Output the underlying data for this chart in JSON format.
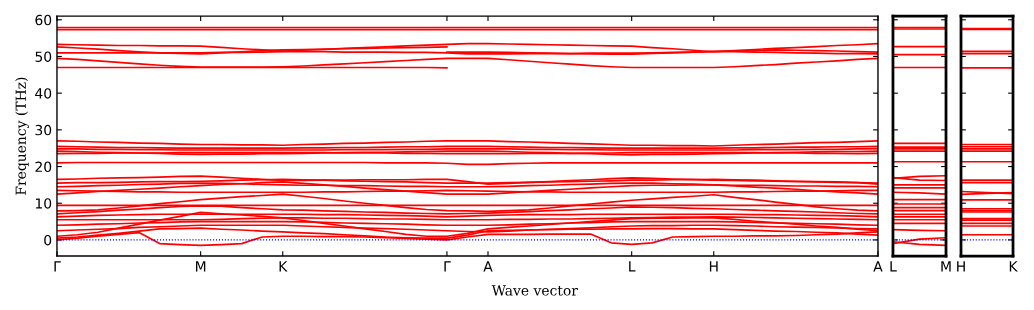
{
  "chart_data": [
    {
      "type": "line",
      "ylabel": "Frequency (THz)",
      "xlabel": "Wave vector",
      "categories": [
        "Γ",
        null,
        null,
        null,
        null,
        null,
        null,
        "M",
        null,
        null,
        null,
        "K",
        null,
        null,
        null,
        null,
        null,
        null,
        null,
        "Γ",
        null,
        "A",
        null,
        null,
        null,
        null,
        null,
        null,
        "L",
        null,
        null,
        null,
        "H",
        null,
        null,
        null,
        null,
        null,
        null,
        null,
        "A"
      ],
      "ylim": [
        -4.4,
        61
      ],
      "yticks": [
        0,
        10,
        20,
        30,
        40,
        50,
        60
      ],
      "line_style": "solid",
      "ref_lines": [
        {
          "axis": "y",
          "value": 0,
          "color": "#0000ff",
          "line_style": "dotted"
        }
      ],
      "series": [
        {
          "color": "#ff0000",
          "values": [
            0,
            0.5,
            1.0,
            1.5,
            2.0,
            -1.0,
            -1.3,
            -1.5,
            -1.3,
            -1.0,
            0.8,
            1.0,
            1.0,
            0.9,
            0.9,
            0.8,
            0.6,
            0.4,
            0.2,
            0,
            0.8,
            1.5,
            1.5,
            1.5,
            1.6,
            1.6,
            1.6,
            -0.8,
            -1.2,
            -0.8,
            0.8,
            0.9,
            1.0,
            1.0,
            1.1,
            1.1,
            1.2,
            1.4,
            1.6,
            1.9,
            2.2
          ]
        },
        {
          "color": "#ff0000",
          "values": [
            0.5,
            0.8,
            1.3,
            1.8,
            2.4,
            3.0,
            3.1,
            3.2,
            2.9,
            2.7,
            2.4,
            2.2,
            1.9,
            1.7,
            1.4,
            1.1,
            0.8,
            0.6,
            0.5,
            0.5,
            1.3,
            2.5,
            2.6,
            2.7,
            2.8,
            2.9,
            2.9,
            3.0,
            3.0,
            3.1,
            3.1,
            3.0,
            3.0,
            2.8,
            2.6,
            2.4,
            2.3,
            2.1,
            1.9,
            1.6,
            1.3
          ]
        },
        {
          "color": "#ff0000",
          "values": [
            1.0,
            1.4,
            2.1,
            3.2,
            4.3,
            5.4,
            6.4,
            7.5,
            7.1,
            6.8,
            6.4,
            6.0,
            5.3,
            4.5,
            3.8,
            3.0,
            2.3,
            1.5,
            1.0,
            1.0,
            1.8,
            3.0,
            3.4,
            3.8,
            4.2,
            4.6,
            5.0,
            5.4,
            5.8,
            5.9,
            5.9,
            6.0,
            6.0,
            5.6,
            5.1,
            4.7,
            4.3,
            3.8,
            3.4,
            2.9,
            2.5
          ]
        },
        {
          "color": "#ff0000",
          "values": [
            2.5,
            2.7,
            2.9,
            3.1,
            3.4,
            3.6,
            3.8,
            4.0,
            4.0,
            4.0,
            4.0,
            4.0,
            3.8,
            3.6,
            3.4,
            3.2,
            3.1,
            2.9,
            2.7,
            2.5,
            2.3,
            2.2,
            2.4,
            2.7,
            2.9,
            3.1,
            3.3,
            3.6,
            3.8,
            3.9,
            3.9,
            4.0,
            4.0,
            3.9,
            3.8,
            3.6,
            3.5,
            3.4,
            3.3,
            3.1,
            3.0
          ]
        },
        {
          "color": "#ff0000",
          "values": [
            4.0,
            4.1,
            4.3,
            4.4,
            4.6,
            4.7,
            4.9,
            5.0,
            5.0,
            5.0,
            5.0,
            5.0,
            4.9,
            4.8,
            4.6,
            4.5,
            4.4,
            4.3,
            4.1,
            4.0,
            4.0,
            4.0,
            4.1,
            4.3,
            4.4,
            4.6,
            4.7,
            4.9,
            5.0,
            5.0,
            5.0,
            5.0,
            5.0,
            4.9,
            4.8,
            4.6,
            4.5,
            4.4,
            4.3,
            4.1,
            4.0
          ]
        },
        {
          "color": "#ff0000",
          "values": [
            5.5,
            5.5,
            5.5,
            5.5,
            5.5,
            5.5,
            5.5,
            5.5,
            5.6,
            5.8,
            5.9,
            6.0,
            6.0,
            5.9,
            5.9,
            5.8,
            5.7,
            5.7,
            5.6,
            5.5,
            5.5,
            5.5,
            5.6,
            5.6,
            5.7,
            5.7,
            5.8,
            5.9,
            6.0,
            6.1,
            6.2,
            6.2,
            6.3,
            6.2,
            6.1,
            6.0,
            5.9,
            5.8,
            5.7,
            5.6,
            5.5
          ]
        },
        {
          "color": "#ff0000",
          "values": [
            6.3,
            6.5,
            6.7,
            6.8,
            6.9,
            7.0,
            7.0,
            7.0,
            7.0,
            7.0,
            7.0,
            7.0,
            7.0,
            6.9,
            6.9,
            6.8,
            6.7,
            6.6,
            6.5,
            6.3,
            6.5,
            6.7,
            6.8,
            6.9,
            6.9,
            6.9,
            7.0,
            7.0,
            7.0,
            7.0,
            7.0,
            7.0,
            7.0,
            7.0,
            6.9,
            6.9,
            6.8,
            6.7,
            6.6,
            6.5,
            6.3
          ]
        },
        {
          "color": "#ff0000",
          "values": [
            7.1,
            7.4,
            7.7,
            8.1,
            8.4,
            8.8,
            9.1,
            9.3,
            9.2,
            8.8,
            8.5,
            8.2,
            8.1,
            7.9,
            7.8,
            7.6,
            7.5,
            7.3,
            7.2,
            7.1,
            7.2,
            7.3,
            7.5,
            7.7,
            8.0,
            8.2,
            8.5,
            8.7,
            9.0,
            8.9,
            8.8,
            8.6,
            8.5,
            8.3,
            8.1,
            7.9,
            7.8,
            7.6,
            7.4,
            7.2,
            7.1
          ]
        },
        {
          "color": "#ff0000",
          "values": [
            9.4,
            9.4,
            9.4,
            9.4,
            9.4,
            9.4,
            9.4,
            9.4,
            9.4,
            9.4,
            9.4,
            9.4,
            9.4,
            9.4,
            9.4,
            9.4,
            9.4,
            9.4,
            9.4,
            9.4,
            9.4,
            9.4,
            9.4,
            9.4,
            9.4,
            9.4,
            9.4,
            9.4,
            9.4,
            9.4,
            9.4,
            9.4,
            9.4,
            9.4,
            9.4,
            9.4,
            9.4,
            9.4,
            9.4,
            9.4,
            9.4
          ]
        },
        {
          "color": "#ff0000",
          "values": [
            7.9,
            8.0,
            8.2,
            8.7,
            9.3,
            9.9,
            10.4,
            11.0,
            11.4,
            11.8,
            12.1,
            12.5,
            11.9,
            11.3,
            10.6,
            10.0,
            9.4,
            8.8,
            8.3,
            8.0,
            7.9,
            7.8,
            8.0,
            8.2,
            8.7,
            9.3,
            9.8,
            10.3,
            10.8,
            11.2,
            11.6,
            11.9,
            12.3,
            11.6,
            11.0,
            10.3,
            9.7,
            9.0,
            8.5,
            8.1,
            7.9
          ]
        },
        {
          "color": "#ff0000",
          "values": [
            12.5,
            12.8,
            13.2,
            13.5,
            13.8,
            14.1,
            14.5,
            14.8,
            15.1,
            15.3,
            15.6,
            15.8,
            15.4,
            15.0,
            14.6,
            14.1,
            13.7,
            13.3,
            12.9,
            12.5,
            12.5,
            12.5,
            12.8,
            13.2,
            13.5,
            13.8,
            14.2,
            14.5,
            14.8,
            14.9,
            14.9,
            15.0,
            15.0,
            14.7,
            14.4,
            14.1,
            13.8,
            13.4,
            13.1,
            12.8,
            12.5
          ]
        },
        {
          "color": "#ff0000",
          "values": [
            13.5,
            13.4,
            13.3,
            13.2,
            13.1,
            13.1,
            13.0,
            13.0,
            13.0,
            13.0,
            13.0,
            13.0,
            13.0,
            13.1,
            13.1,
            13.2,
            13.3,
            13.3,
            13.4,
            13.5,
            13.4,
            13.3,
            13.2,
            13.1,
            13.1,
            13.0,
            13.0,
            13.0,
            13.0,
            13.0,
            13.0,
            13.0,
            13.0,
            13.1,
            13.1,
            13.2,
            13.3,
            13.3,
            13.4,
            13.5,
            13.5
          ]
        },
        {
          "color": "#ff0000",
          "values": [
            14.5,
            14.6,
            14.8,
            14.9,
            15.1,
            15.2,
            15.4,
            15.5,
            15.4,
            15.3,
            15.1,
            15.0,
            14.9,
            14.9,
            14.8,
            14.8,
            14.7,
            14.6,
            14.6,
            14.5,
            14.5,
            14.5,
            14.6,
            14.8,
            14.9,
            15.1,
            15.2,
            15.4,
            15.5,
            15.5,
            15.3,
            15.2,
            15.0,
            14.9,
            14.9,
            14.8,
            14.7,
            14.7,
            14.6,
            14.6,
            14.5
          ]
        },
        {
          "color": "#ff0000",
          "values": [
            15.5,
            15.6,
            15.6,
            15.7,
            15.8,
            15.9,
            15.9,
            16.0,
            16.1,
            16.3,
            16.4,
            16.5,
            16.4,
            16.3,
            16.1,
            16.0,
            15.9,
            15.8,
            15.6,
            15.5,
            15.5,
            15.5,
            15.6,
            15.7,
            15.8,
            15.9,
            16.0,
            16.1,
            16.3,
            16.3,
            16.4,
            16.4,
            16.5,
            16.4,
            16.3,
            16.1,
            16.0,
            15.9,
            15.8,
            15.6,
            15.5
          ]
        },
        {
          "color": "#ff0000",
          "values": [
            16.5,
            16.6,
            16.8,
            16.9,
            17.0,
            17.1,
            17.3,
            17.4,
            17.1,
            16.8,
            16.5,
            16.2,
            16.2,
            16.3,
            16.3,
            16.4,
            16.4,
            16.4,
            16.5,
            16.5,
            15.9,
            15.2,
            15.4,
            15.7,
            15.9,
            16.2,
            16.4,
            16.7,
            16.9,
            16.8,
            16.6,
            16.5,
            16.3,
            16.2,
            16.1,
            16.0,
            15.9,
            15.8,
            15.7,
            15.6,
            15.2
          ]
        },
        {
          "color": "#ff0000",
          "values": [
            21.0,
            21.1,
            21.1,
            21.1,
            21.1,
            21.1,
            21.1,
            21.1,
            21.1,
            21.1,
            21.1,
            21.1,
            21.1,
            21.1,
            21.1,
            21.1,
            21.0,
            21.0,
            21.0,
            20.9,
            20.6,
            20.6,
            20.8,
            20.9,
            21.0,
            21.0,
            21.0,
            21.0,
            21.0,
            21.0,
            21.0,
            21.0,
            21.0,
            21.0,
            21.0,
            21.0,
            21.0,
            21.0,
            21.0,
            21.0,
            21.0
          ]
        },
        {
          "color": "#ff0000",
          "values": [
            23.5,
            23.6,
            23.6,
            23.7,
            23.7,
            23.7,
            23.8,
            23.8,
            23.8,
            23.8,
            23.8,
            23.8,
            23.8,
            23.8,
            23.7,
            23.7,
            23.7,
            23.6,
            23.6,
            23.5,
            23.5,
            23.5,
            23.5,
            23.6,
            23.6,
            23.6,
            23.7,
            23.7,
            23.8,
            23.8,
            23.8,
            23.8,
            23.8,
            23.8,
            23.8,
            23.7,
            23.7,
            23.6,
            23.6,
            23.5,
            23.6
          ]
        },
        {
          "color": "#ff0000",
          "values": [
            24.2,
            24.1,
            23.9,
            23.8,
            23.7,
            23.6,
            23.4,
            23.3,
            23.4,
            23.4,
            23.5,
            23.5,
            23.6,
            23.7,
            23.8,
            23.9,
            23.9,
            24.0,
            24.1,
            24.2,
            24.2,
            24.2,
            24.1,
            23.9,
            23.8,
            23.6,
            23.5,
            23.3,
            23.2,
            23.3,
            23.3,
            23.4,
            23.5,
            23.6,
            23.7,
            23.8,
            23.9,
            24.0,
            24.1,
            24.1,
            24.2
          ]
        },
        {
          "color": "#ff0000",
          "values": [
            24.8,
            24.8,
            24.7,
            24.7,
            24.6,
            24.6,
            24.5,
            24.5,
            24.5,
            24.5,
            24.5,
            24.5,
            24.5,
            24.5,
            24.6,
            24.6,
            24.6,
            24.7,
            24.7,
            24.8,
            24.8,
            24.8,
            24.8,
            24.7,
            24.7,
            24.6,
            24.6,
            24.5,
            24.5,
            24.5,
            24.5,
            24.5,
            24.5,
            24.5,
            24.6,
            24.6,
            24.6,
            24.7,
            24.7,
            24.8,
            24.9
          ]
        },
        {
          "color": "#ff0000",
          "values": [
            25.5,
            25.4,
            25.3,
            25.2,
            25.2,
            25.1,
            25.0,
            25.0,
            25.0,
            25.0,
            25.0,
            25.0,
            25.1,
            25.1,
            25.2,
            25.2,
            25.3,
            25.4,
            25.4,
            25.5,
            25.5,
            25.5,
            25.4,
            25.3,
            25.2,
            25.2,
            25.1,
            25.0,
            25.0,
            25.0,
            25.0,
            25.0,
            25.0,
            25.1,
            25.1,
            25.2,
            25.3,
            25.3,
            25.4,
            25.4,
            25.5
          ]
        },
        {
          "color": "#ff0000",
          "values": [
            27.0,
            26.9,
            26.7,
            26.6,
            26.4,
            26.3,
            26.1,
            26.0,
            26.0,
            25.9,
            25.9,
            25.8,
            26.0,
            26.1,
            26.3,
            26.4,
            26.6,
            26.7,
            26.9,
            27.0,
            27.0,
            27.0,
            26.8,
            26.7,
            26.5,
            26.3,
            26.2,
            26.0,
            25.8,
            25.8,
            25.7,
            25.7,
            25.6,
            25.8,
            26.0,
            26.1,
            26.3,
            26.5,
            26.6,
            26.8,
            27.0
          ]
        },
        {
          "color": "#ff0000",
          "values": [
            47.0,
            47.0,
            47.0,
            47.0,
            47.0,
            47.0,
            47.0,
            47.0,
            47.0,
            47.0,
            47.0,
            47.0,
            47.0,
            47.0,
            47.0,
            47.0,
            47.0,
            47.0,
            47.0,
            46.9,
            null,
            null,
            null,
            null,
            null,
            null,
            null,
            null,
            null,
            null,
            null,
            null,
            null,
            null,
            null,
            null,
            null,
            null,
            null,
            null,
            null
          ]
        },
        {
          "color": "#ff0000",
          "values": [
            49.5,
            49.2,
            48.8,
            48.4,
            48.0,
            47.6,
            47.3,
            47.1,
            47.1,
            47.1,
            47.1,
            47.2,
            47.4,
            47.7,
            48.0,
            48.3,
            48.6,
            48.9,
            49.2,
            49.5,
            49.5,
            49.5,
            49.1,
            48.7,
            48.3,
            47.9,
            47.5,
            47.2,
            47.0,
            47.0,
            47.0,
            47.0,
            47.0,
            47.2,
            47.5,
            47.8,
            48.2,
            48.5,
            48.8,
            49.2,
            49.5
          ]
        },
        {
          "color": "#ff0000",
          "values": [
            51.0,
            51.0,
            51.0,
            51.0,
            51.0,
            51.0,
            51.0,
            51.0,
            51.1,
            51.1,
            51.2,
            51.3,
            51.3,
            51.3,
            51.2,
            51.2,
            51.2,
            51.1,
            51.1,
            51.0,
            50.7,
            50.7,
            50.7,
            50.8,
            50.8,
            50.8,
            50.9,
            50.9,
            50.9,
            51.0,
            51.1,
            51.2,
            51.3,
            51.3,
            51.2,
            51.1,
            51.0,
            50.9,
            50.8,
            50.8,
            50.7
          ]
        },
        {
          "color": "#ff0000",
          "values": [
            52.6,
            52.3,
            52.0,
            51.6,
            51.3,
            51.0,
            50.8,
            50.7,
            51.0,
            51.3,
            51.6,
            51.8,
            51.9,
            52.0,
            52.1,
            52.2,
            52.3,
            52.4,
            52.5,
            52.6,
            null,
            null,
            null,
            null,
            null,
            null,
            null,
            null,
            null,
            null,
            null,
            null,
            null,
            null,
            null,
            null,
            null,
            null,
            null,
            null,
            null
          ]
        },
        {
          "color": "#ff0000",
          "values": [
            null,
            null,
            null,
            null,
            null,
            null,
            null,
            null,
            null,
            null,
            null,
            null,
            null,
            null,
            null,
            null,
            null,
            null,
            null,
            51.2,
            51.2,
            51.2,
            51.1,
            51.0,
            50.9,
            50.8,
            50.7,
            50.6,
            50.6,
            50.8,
            51.0,
            51.2,
            51.4,
            51.5,
            51.6,
            51.8,
            51.7,
            51.6,
            51.5,
            51.3,
            51.2
          ]
        },
        {
          "color": "#ff0000",
          "values": [
            53.3,
            53.2,
            53.1,
            53.0,
            53.0,
            52.9,
            52.9,
            52.8,
            52.5,
            52.1,
            51.8,
            51.5,
            51.7,
            51.9,
            52.2,
            52.4,
            52.6,
            52.9,
            53.1,
            53.3,
            53.5,
            53.5,
            53.4,
            53.3,
            53.2,
            53.1,
            53.0,
            52.9,
            52.8,
            52.4,
            52.1,
            51.7,
            51.3,
            51.6,
            51.9,
            52.2,
            52.4,
            52.7,
            53.0,
            53.2,
            53.5
          ]
        },
        {
          "color": "#ff0000",
          "values": [
            57.3,
            57.3,
            57.3,
            57.3,
            57.3,
            57.3,
            57.3,
            57.3,
            57.3,
            57.3,
            57.3,
            57.3,
            57.3,
            57.3,
            57.3,
            57.3,
            57.3,
            57.3,
            57.3,
            57.3,
            57.3,
            57.3,
            57.3,
            57.3,
            57.3,
            57.3,
            57.3,
            57.3,
            57.3,
            57.3,
            57.3,
            57.3,
            57.3,
            57.3,
            57.3,
            57.3,
            57.3,
            57.3,
            57.3,
            57.3,
            57.3
          ]
        },
        {
          "color": "#ff0000",
          "values": [
            57.9,
            57.9,
            57.9,
            57.9,
            57.9,
            57.9,
            57.9,
            57.9,
            57.9,
            57.9,
            57.9,
            57.9,
            57.9,
            57.9,
            57.9,
            57.9,
            57.9,
            57.9,
            57.9,
            57.9,
            57.9,
            57.9,
            57.9,
            57.9,
            57.9,
            57.9,
            57.9,
            57.9,
            57.9,
            57.9,
            57.9,
            57.9,
            57.9,
            57.9,
            57.9,
            57.9,
            57.9,
            57.9,
            57.9,
            57.9,
            57.9
          ]
        }
      ]
    },
    {
      "type": "line",
      "categories": [
        "L",
        null,
        "M"
      ],
      "ylim": [
        -4.4,
        61
      ],
      "yticks": [
        0,
        10,
        20,
        30,
        40,
        50,
        60
      ],
      "tick_labels": "x",
      "line_style": "solid",
      "ref_lines": [
        {
          "axis": "y",
          "value": 0,
          "color": "#0000ff",
          "line_style": "dotted"
        }
      ],
      "series": [
        {
          "color": "#ff0000",
          "values": [
            57.9,
            57.9,
            57.9
          ]
        },
        {
          "color": "#ff0000",
          "values": [
            57.5,
            57.5,
            57.5
          ]
        },
        {
          "color": "#ff0000",
          "values": [
            52.7,
            52.7,
            52.7
          ]
        },
        {
          "color": "#ff0000",
          "values": [
            50.5,
            50.5,
            50.5
          ]
        },
        {
          "color": "#ff0000",
          "values": [
            47.0,
            47.0,
            47.0
          ]
        },
        {
          "color": "#ff0000",
          "values": [
            26.3,
            26.3,
            26.3
          ]
        },
        {
          "color": "#ff0000",
          "values": [
            25.3,
            25.3,
            25.3
          ]
        },
        {
          "color": "#ff0000",
          "values": [
            24.8,
            24.8,
            24.8
          ]
        },
        {
          "color": "#ff0000",
          "values": [
            24.2,
            24.2,
            24.2
          ]
        },
        {
          "color": "#ff0000",
          "values": [
            21.3,
            21.3,
            21.3
          ]
        },
        {
          "color": "#ff0000",
          "values": [
            16.8,
            17.3,
            17.5
          ]
        },
        {
          "color": "#ff0000",
          "values": [
            17.0,
            16.3,
            16.2
          ]
        },
        {
          "color": "#ff0000",
          "values": [
            15.0,
            15.0,
            15.0
          ]
        },
        {
          "color": "#ff0000",
          "values": [
            14.2,
            14.2,
            14.2
          ]
        },
        {
          "color": "#ff0000",
          "values": [
            13.0,
            12.8,
            12.5
          ]
        },
        {
          "color": "#ff0000",
          "values": [
            11.0,
            11.0,
            11.0
          ]
        },
        {
          "color": "#ff0000",
          "values": [
            9.8,
            9.8,
            9.8
          ]
        },
        {
          "color": "#ff0000",
          "values": [
            8.8,
            8.8,
            8.8
          ]
        },
        {
          "color": "#ff0000",
          "values": [
            8.0,
            8.0,
            8.0
          ]
        },
        {
          "color": "#ff0000",
          "values": [
            7.0,
            7.0,
            7.0
          ]
        },
        {
          "color": "#ff0000",
          "values": [
            6.3,
            6.3,
            6.3
          ]
        },
        {
          "color": "#ff0000",
          "values": [
            5.5,
            5.5,
            5.5
          ]
        },
        {
          "color": "#ff0000",
          "values": [
            4.5,
            4.5,
            4.5
          ]
        },
        {
          "color": "#ff0000",
          "values": [
            2.8,
            2.6,
            2.5
          ]
        },
        {
          "color": "#ff0000",
          "values": [
            -1.0,
            0.2,
            0.6
          ]
        },
        {
          "color": "#ff0000",
          "values": [
            -0.5,
            -1.2,
            -1.5
          ]
        }
      ]
    },
    {
      "type": "line",
      "categories": [
        "H",
        null,
        "K"
      ],
      "ylim": [
        -4.4,
        61
      ],
      "yticks": [
        0,
        10,
        20,
        30,
        40,
        50,
        60
      ],
      "tick_labels": "x",
      "line_style": "solid",
      "ref_lines": [
        {
          "axis": "y",
          "value": 0,
          "color": "#0000ff",
          "line_style": "dotted"
        }
      ],
      "series": [
        {
          "color": "#ff0000",
          "values": [
            57.6,
            57.6,
            57.6
          ]
        },
        {
          "color": "#ff0000",
          "values": [
            57.4,
            57.4,
            57.4
          ]
        },
        {
          "color": "#ff0000",
          "values": [
            51.4,
            51.4,
            51.4
          ]
        },
        {
          "color": "#ff0000",
          "values": [
            50.8,
            50.8,
            50.8
          ]
        },
        {
          "color": "#ff0000",
          "values": [
            46.9,
            46.9,
            46.9
          ]
        },
        {
          "color": "#ff0000",
          "values": [
            26.0,
            26.0,
            26.0
          ]
        },
        {
          "color": "#ff0000",
          "values": [
            25.4,
            25.4,
            25.4
          ]
        },
        {
          "color": "#ff0000",
          "values": [
            24.8,
            24.8,
            24.8
          ]
        },
        {
          "color": "#ff0000",
          "values": [
            24.2,
            24.2,
            24.2
          ]
        },
        {
          "color": "#ff0000",
          "values": [
            21.3,
            21.3,
            21.3
          ]
        },
        {
          "color": "#ff0000",
          "values": [
            16.3,
            16.3,
            16.3
          ]
        },
        {
          "color": "#ff0000",
          "values": [
            15.6,
            15.6,
            15.6
          ]
        },
        {
          "color": "#ff0000",
          "values": [
            13.2,
            12.9,
            12.6
          ]
        },
        {
          "color": "#ff0000",
          "values": [
            12.4,
            12.7,
            12.9
          ]
        },
        {
          "color": "#ff0000",
          "values": [
            10.9,
            10.9,
            10.9
          ]
        },
        {
          "color": "#ff0000",
          "values": [
            8.5,
            8.5,
            8.5
          ]
        },
        {
          "color": "#ff0000",
          "values": [
            8.0,
            8.0,
            8.0
          ]
        },
        {
          "color": "#ff0000",
          "values": [
            7.6,
            7.6,
            7.6
          ]
        },
        {
          "color": "#ff0000",
          "values": [
            5.8,
            5.8,
            5.8
          ]
        },
        {
          "color": "#ff0000",
          "values": [
            5.4,
            5.4,
            5.4
          ]
        },
        {
          "color": "#ff0000",
          "values": [
            4.5,
            4.5,
            4.5
          ]
        },
        {
          "color": "#ff0000",
          "values": [
            3.8,
            3.8,
            3.8
          ]
        },
        {
          "color": "#ff0000",
          "values": [
            1.4,
            1.4,
            1.4
          ]
        }
      ]
    }
  ]
}
